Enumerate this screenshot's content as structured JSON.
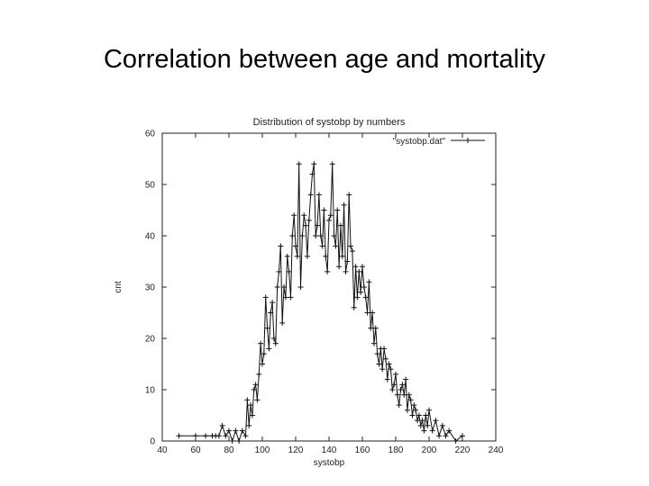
{
  "slide": {
    "title": "Correlation between age and mortality"
  },
  "chart_data": {
    "type": "line",
    "title": "Distribution of systobp by numbers",
    "xlabel": "systobp",
    "ylabel": "cnt",
    "xlim": [
      40,
      240
    ],
    "ylim": [
      0,
      60
    ],
    "xticks": [
      40,
      60,
      80,
      100,
      120,
      140,
      160,
      180,
      200,
      220,
      240
    ],
    "yticks": [
      0,
      10,
      20,
      30,
      40,
      50,
      60
    ],
    "grid": false,
    "legend_position": "top-right",
    "series": [
      {
        "name": "\"systobp.dat\"",
        "color": "#111111",
        "marker": "plus",
        "x": [
          50,
          60,
          66,
          70,
          72,
          74,
          76,
          78,
          80,
          82,
          84,
          86,
          88,
          90,
          91,
          92,
          93,
          94,
          95,
          96,
          97,
          98,
          99,
          100,
          101,
          102,
          103,
          104,
          105,
          106,
          107,
          108,
          109,
          110,
          111,
          112,
          113,
          114,
          115,
          116,
          117,
          118,
          119,
          120,
          121,
          122,
          123,
          124,
          125,
          126,
          127,
          128,
          129,
          130,
          131,
          132,
          133,
          134,
          135,
          136,
          137,
          138,
          139,
          140,
          141,
          142,
          143,
          144,
          145,
          146,
          147,
          148,
          149,
          150,
          151,
          152,
          153,
          154,
          155,
          156,
          157,
          158,
          159,
          160,
          161,
          162,
          163,
          164,
          165,
          166,
          167,
          168,
          169,
          170,
          171,
          172,
          173,
          174,
          175,
          176,
          177,
          178,
          179,
          180,
          181,
          182,
          183,
          184,
          185,
          186,
          187,
          188,
          189,
          190,
          191,
          192,
          193,
          194,
          195,
          196,
          197,
          198,
          199,
          200,
          202,
          204,
          206,
          208,
          210,
          212,
          216,
          220
        ],
        "y": [
          1,
          1,
          1,
          1,
          1,
          1,
          3,
          1,
          2,
          0,
          2,
          0,
          2,
          1,
          8,
          3,
          7,
          5,
          10,
          11,
          8,
          13,
          19,
          15,
          17,
          28,
          22,
          18,
          25,
          27,
          20,
          19,
          30,
          33,
          38,
          23,
          30,
          28,
          36,
          33,
          28,
          40,
          44,
          38,
          36,
          54,
          30,
          40,
          44,
          42,
          36,
          43,
          48,
          52,
          54,
          40,
          42,
          48,
          40,
          38,
          45,
          36,
          33,
          43,
          44,
          54,
          40,
          38,
          45,
          34,
          42,
          36,
          46,
          33,
          35,
          48,
          38,
          37,
          26,
          34,
          28,
          33,
          29,
          34,
          30,
          28,
          25,
          31,
          22,
          25,
          19,
          22,
          17,
          15,
          18,
          14,
          18,
          16,
          12,
          15,
          14,
          10,
          11,
          13,
          9,
          7,
          10,
          11,
          9,
          12,
          6,
          9,
          8,
          5,
          7,
          6,
          4,
          5,
          3,
          4,
          2,
          5,
          3,
          6,
          2,
          4,
          1,
          3,
          1,
          2,
          0,
          1
        ]
      }
    ]
  }
}
